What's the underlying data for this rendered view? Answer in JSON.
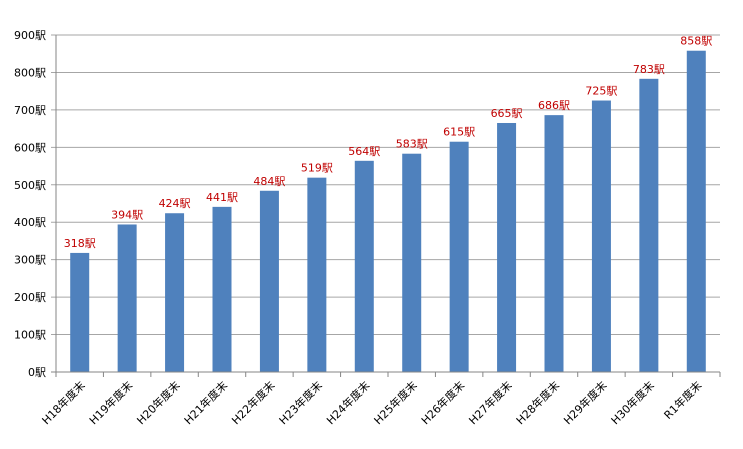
{
  "chart_data": {
    "type": "bar",
    "title": "",
    "xlabel": "",
    "ylabel": "",
    "unit_suffix": "駅",
    "categories": [
      "H18年度末",
      "H19年度末",
      "H20年度末",
      "H21年度末",
      "H22年度末",
      "H23年度末",
      "H24年度末",
      "H25年度末",
      "H26年度末",
      "H27年度末",
      "H28年度末",
      "H29年度末",
      "H30年度末",
      "R1年度末"
    ],
    "values": [
      318,
      394,
      424,
      441,
      484,
      519,
      564,
      583,
      615,
      665,
      686,
      725,
      783,
      858
    ],
    "data_labels": [
      "318駅",
      "394駅",
      "424駅",
      "441駅",
      "484駅",
      "519駅",
      "564駅",
      "583駅",
      "615駅",
      "665駅",
      "686駅",
      "725駅",
      "783駅",
      "858駅"
    ],
    "ylim": [
      0,
      900
    ],
    "yticks": [
      0,
      100,
      200,
      300,
      400,
      500,
      600,
      700,
      800,
      900
    ],
    "ytick_labels": [
      "0駅",
      "100駅",
      "200駅",
      "300駅",
      "400駅",
      "500駅",
      "600駅",
      "700駅",
      "800駅",
      "900駅"
    ],
    "grid": true,
    "legend": null,
    "colors": {
      "bar": "#4f81bd",
      "data_label": "#c00000",
      "grid": "#a6a6a6",
      "axis": "#868686"
    }
  }
}
